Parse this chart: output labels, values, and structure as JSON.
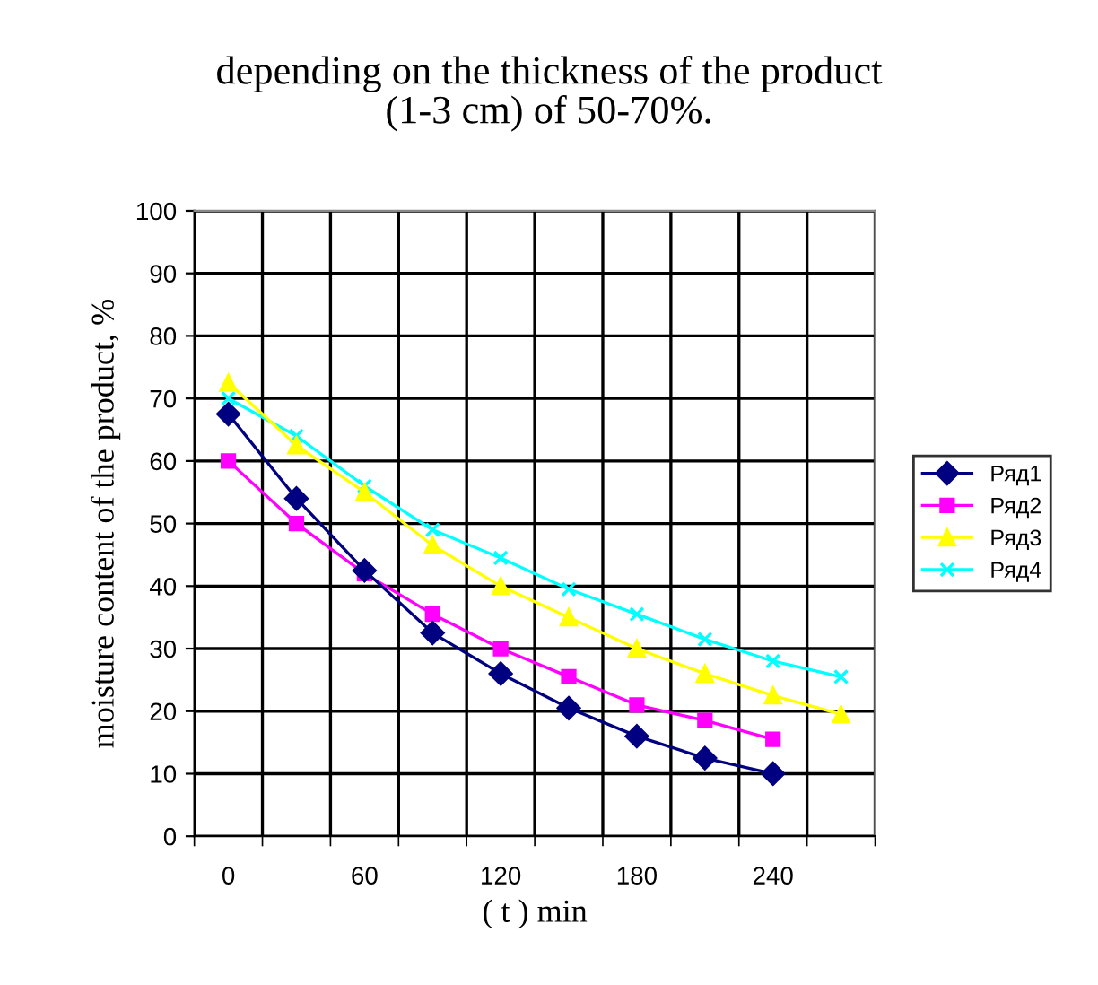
{
  "chart_data": {
    "type": "line",
    "title": "depending on the thickness of the product\n(1-3 cm) of 50-70%.",
    "xlabel": "( t ) min",
    "ylabel": "moisture content of the product, %",
    "categories": [
      "0",
      null,
      "60",
      null,
      "120",
      null,
      "180",
      null,
      "240",
      null
    ],
    "series": [
      {
        "name": "Ряд1",
        "color": "#000080",
        "marker": "diamond",
        "values": [
          67.5,
          54,
          42.5,
          32.5,
          26,
          20.5,
          16,
          12.5,
          10,
          null
        ]
      },
      {
        "name": "Ряд2",
        "color": "#ff00ff",
        "marker": "square",
        "values": [
          60,
          50,
          42,
          35.5,
          30,
          25.5,
          21,
          18.5,
          15.5,
          null
        ]
      },
      {
        "name": "Ряд3",
        "color": "#ffff00",
        "marker": "triangle",
        "values": [
          72.5,
          62.5,
          55,
          46.5,
          40,
          35,
          30,
          26,
          22.5,
          19.5
        ]
      },
      {
        "name": "Ряд4",
        "color": "#00ffff",
        "marker": "cross",
        "values": [
          70,
          64,
          56,
          49,
          44.5,
          39.5,
          35.5,
          31.5,
          28,
          25.5
        ]
      }
    ],
    "ylim": [
      0,
      100
    ],
    "yticks": [
      0,
      10,
      20,
      30,
      40,
      50,
      60,
      70,
      80,
      90,
      100
    ],
    "grid": true,
    "legend": "right"
  }
}
